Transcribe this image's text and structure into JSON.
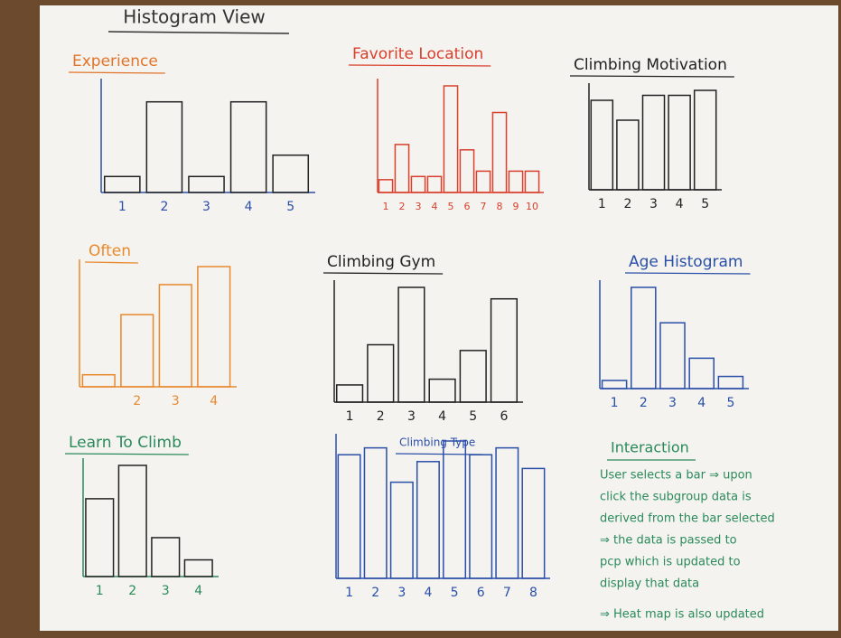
{
  "title": "Histogram View",
  "chart_data": [
    {
      "type": "bar",
      "title": "Experience",
      "title_color": "#e0742a",
      "color": "#222222",
      "axis_color": "#2a4fa8",
      "categories": [
        "1",
        "2",
        "3",
        "4",
        "5"
      ],
      "values": [
        15,
        85,
        15,
        85,
        35
      ],
      "ylim": [
        0,
        100
      ]
    },
    {
      "type": "bar",
      "title": "Favorite Location",
      "title_color": "#d9402e",
      "color": "#d9402e",
      "axis_color": "#d9402e",
      "categories": [
        "1",
        "2",
        "3",
        "4",
        "5",
        "6",
        "7",
        "8",
        "9",
        "10"
      ],
      "values": [
        12,
        45,
        15,
        15,
        100,
        40,
        20,
        75,
        20,
        20
      ],
      "ylim": [
        0,
        100
      ]
    },
    {
      "type": "bar",
      "title": "Climbing Motivation",
      "title_color": "#222222",
      "color": "#222222",
      "axis_color": "#222222",
      "categories": [
        "1",
        "2",
        "3",
        "4",
        "5"
      ],
      "values": [
        90,
        70,
        95,
        95,
        100
      ],
      "ylim": [
        0,
        100
      ]
    },
    {
      "type": "bar",
      "title": "Often",
      "title_color": "#e8892e",
      "color": "#e8892e",
      "axis_color": "#e8892e",
      "categories": [
        null,
        "2",
        "3",
        "4"
      ],
      "values": [
        10,
        60,
        85,
        100
      ],
      "ylim": [
        0,
        100
      ]
    },
    {
      "type": "bar",
      "title": "Climbing Gym",
      "title_color": "#222222",
      "color": "#222222",
      "axis_color": "#222222",
      "categories": [
        "1",
        "2",
        "3",
        "4",
        "5",
        "6"
      ],
      "values": [
        15,
        50,
        100,
        20,
        45,
        90
      ],
      "ylim": [
        0,
        100
      ]
    },
    {
      "type": "bar",
      "title": "Age Histogram",
      "title_color": "#2a4fa8",
      "color": "#2a4fa8",
      "axis_color": "#2a4fa8",
      "categories": [
        "1",
        "2",
        "3",
        "4",
        "5"
      ],
      "values": [
        8,
        100,
        65,
        30,
        12
      ],
      "ylim": [
        0,
        100
      ]
    },
    {
      "type": "bar",
      "title": "Learn To Climb",
      "title_color": "#2a8a5a",
      "color": "#222222",
      "axis_color": "#2a8a5a",
      "categories": [
        "1",
        "2",
        "3",
        "4"
      ],
      "values": [
        70,
        100,
        35,
        15
      ],
      "ylim": [
        0,
        100
      ]
    },
    {
      "type": "bar",
      "title": "Climbing Type",
      "title_color": "#2a4fa8",
      "color": "#2a4fa8",
      "axis_color": "#2a4fa8",
      "categories": [
        "1",
        "2",
        "3",
        "4",
        "5",
        "6",
        "7",
        "8"
      ],
      "values": [
        90,
        95,
        70,
        85,
        100,
        90,
        95,
        80
      ],
      "ylim": [
        0,
        100
      ]
    }
  ],
  "interaction": {
    "title": "Interaction",
    "lines": [
      "User selects a bar ⇒ upon",
      "click the subgroup data is",
      "derived from the bar selected",
      "⇒ the data is passed to",
      "pcp which is updated to",
      "display that data",
      "⇒ Heat map is also updated"
    ]
  }
}
